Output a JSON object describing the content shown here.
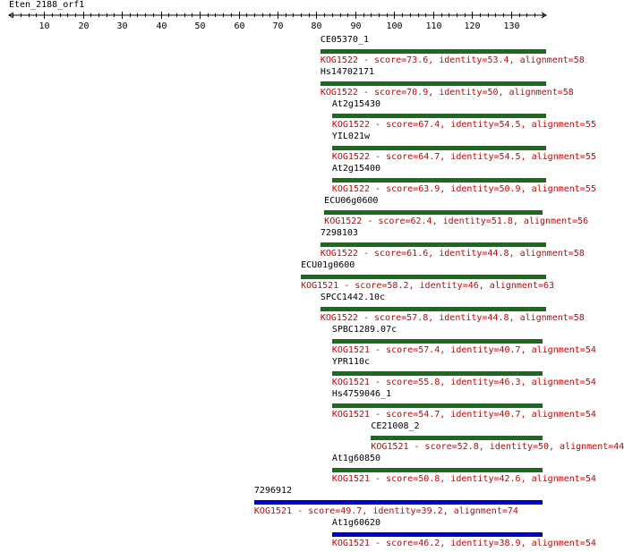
{
  "query_name": "Eten_2188_orf1",
  "axis": {
    "min": 1,
    "max": 139,
    "major_ticks": [
      10,
      20,
      30,
      40,
      50,
      60,
      70,
      80,
      90,
      100,
      110,
      120,
      130
    ],
    "tick_labels": [
      "10",
      "20",
      "30",
      "40",
      "50",
      "60",
      "70",
      "80",
      "90",
      "100",
      "110",
      "120",
      "130"
    ]
  },
  "colors": {
    "green": "#1a6b1a",
    "blue": "#0000cc",
    "desc": "#cc0000"
  },
  "hits": [
    {
      "name": "CE05370_1",
      "start": 81,
      "end": 139,
      "color": "green",
      "desc": "KOG1522 - score=73.6, identity=53.4, alignment=58"
    },
    {
      "name": "Hs14702171",
      "start": 81,
      "end": 139,
      "color": "green",
      "desc": "KOG1522 - score=70.9, identity=50, alignment=58"
    },
    {
      "name": "At2g15430",
      "start": 84,
      "end": 139,
      "color": "green",
      "desc": "KOG1522 - score=67.4, identity=54.5, alignment=55"
    },
    {
      "name": "YIL021w",
      "start": 84,
      "end": 139,
      "color": "green",
      "desc": "KOG1522 - score=64.7, identity=54.5, alignment=55"
    },
    {
      "name": "At2g15400",
      "start": 84,
      "end": 139,
      "color": "green",
      "desc": "KOG1522 - score=63.9, identity=50.9, alignment=55"
    },
    {
      "name": "ECU06g0600",
      "start": 82,
      "end": 138,
      "color": "green",
      "desc": "KOG1522 - score=62.4, identity=51.8, alignment=56"
    },
    {
      "name": "7298103",
      "start": 81,
      "end": 139,
      "color": "green",
      "desc": "KOG1522 - score=61.6, identity=44.8, alignment=58"
    },
    {
      "name": "ECU01g0600",
      "start": 76,
      "end": 139,
      "color": "green",
      "desc": "KOG1521 - score=58.2, identity=46, alignment=63"
    },
    {
      "name": "SPCC1442.10c",
      "start": 81,
      "end": 139,
      "color": "green",
      "desc": "KOG1522 - score=57.8, identity=44.8, alignment=58"
    },
    {
      "name": "SPBC1289.07c",
      "start": 84,
      "end": 138,
      "color": "green",
      "desc": "KOG1521 - score=57.4, identity=40.7, alignment=54"
    },
    {
      "name": "YPR110c",
      "start": 84,
      "end": 138,
      "color": "green",
      "desc": "KOG1521 - score=55.8, identity=46.3, alignment=54"
    },
    {
      "name": "Hs4759046_1",
      "start": 84,
      "end": 138,
      "color": "green",
      "desc": "KOG1521 - score=54.7, identity=40.7, alignment=54"
    },
    {
      "name": "CE21008_2",
      "start": 94,
      "end": 138,
      "color": "green",
      "desc": "KOG1521 - score=52.8, identity=50, alignment=44"
    },
    {
      "name": "At1g60850",
      "start": 84,
      "end": 138,
      "color": "green",
      "desc": "KOG1521 - score=50.8, identity=42.6, alignment=54"
    },
    {
      "name": "7296912",
      "start": 64,
      "end": 138,
      "color": "blue",
      "desc": "KOG1521 - score=49.7, identity=39.2, alignment=74"
    },
    {
      "name": "At1g60620",
      "start": 84,
      "end": 138,
      "color": "blue",
      "desc": "KOG1521 - score=46.2, identity=38.9, alignment=54"
    }
  ]
}
